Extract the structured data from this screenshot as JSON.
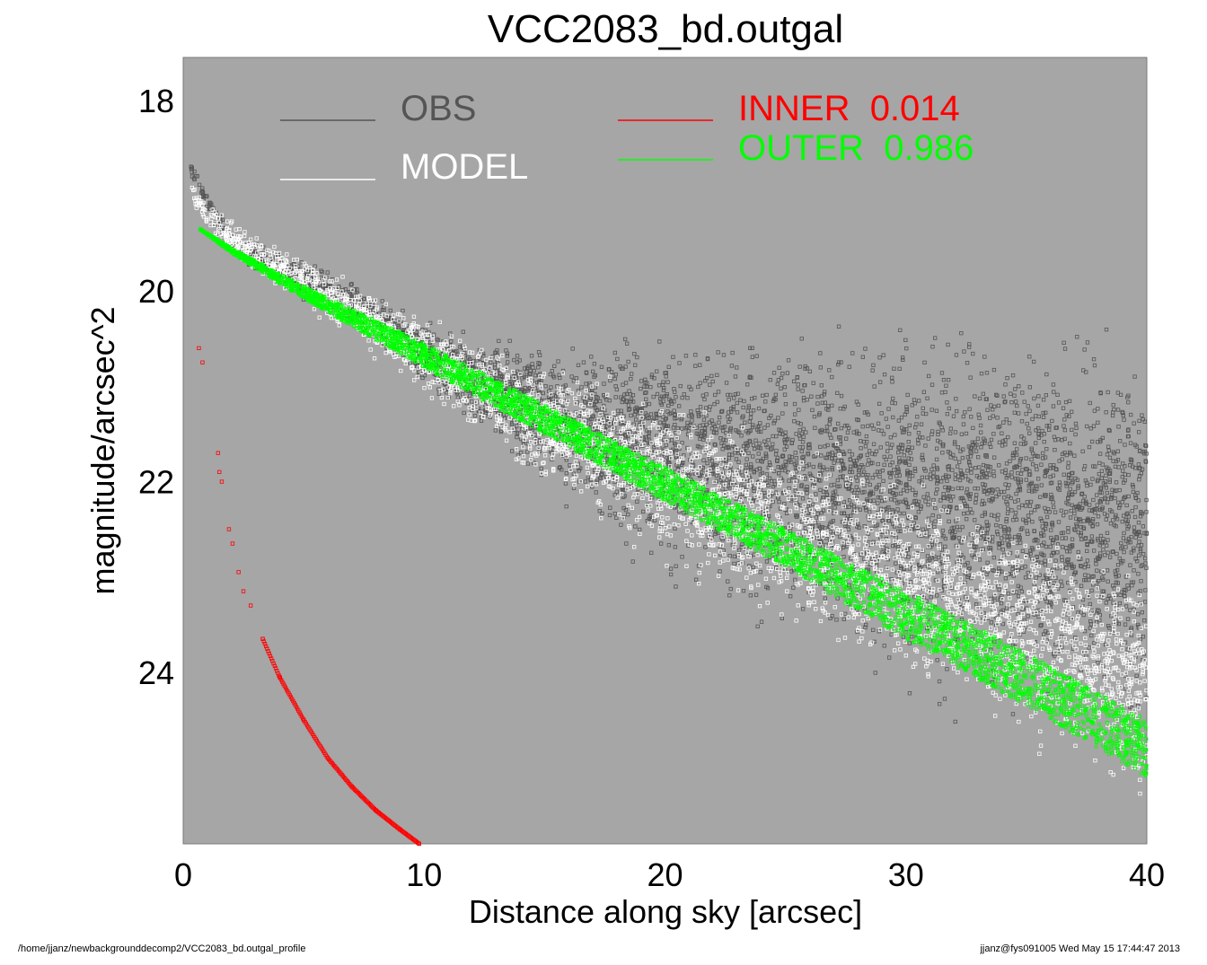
{
  "chart_data": {
    "type": "scatter",
    "title": "VCC2083_bd.outgal",
    "xlabel": "Distance along sky [arcsec]",
    "ylabel": "magnitude/arcsec^2",
    "xlim": [
      0,
      40
    ],
    "ylim": [
      25.8,
      17.55
    ],
    "y_inverted": true,
    "x_ticks": [
      0,
      10,
      20,
      30,
      40
    ],
    "y_ticks": [
      18,
      20,
      22,
      24
    ],
    "plot_background": "#a6a6a6",
    "legend": [
      {
        "name": "OBS",
        "color": "#555555"
      },
      {
        "name": "MODEL",
        "color": "#ffffff"
      },
      {
        "name": "INNER",
        "value": "0.014",
        "color": "#ff0000"
      },
      {
        "name": "OUTER",
        "value": "0.986",
        "color": "#00ff00"
      }
    ],
    "series": [
      {
        "name": "OBS",
        "color": "#555555",
        "profile": {
          "x": [
            0.3,
            1,
            2,
            4,
            6,
            8,
            10,
            15,
            20,
            25,
            30,
            35,
            40
          ],
          "y": [
            18.7,
            19.1,
            19.5,
            19.75,
            20.0,
            20.3,
            20.65,
            21.3,
            21.7,
            22.0,
            22.2,
            22.4,
            22.5
          ]
        },
        "scatter_sigma": {
          "x": [
            0,
            10,
            15,
            20,
            30,
            40
          ],
          "y": [
            0.05,
            0.2,
            0.45,
            0.8,
            1.2,
            1.4
          ]
        }
      },
      {
        "name": "MODEL",
        "color": "#ffffff",
        "profile": {
          "x": [
            0.3,
            1,
            2,
            4,
            6,
            8,
            10,
            15,
            20,
            25,
            30,
            35,
            40
          ],
          "y": [
            18.95,
            19.2,
            19.45,
            19.75,
            20.05,
            20.35,
            20.7,
            21.4,
            22.0,
            22.55,
            23.05,
            23.55,
            24.2
          ]
        },
        "scatter_sigma": {
          "x": [
            0,
            10,
            20,
            40
          ],
          "y": [
            0.08,
            0.3,
            0.6,
            0.9
          ]
        }
      },
      {
        "name": "OUTER",
        "color": "#00ff00",
        "band_upper": {
          "x": [
            0.7,
            2,
            5,
            10,
            15,
            20,
            25,
            30,
            35,
            40
          ],
          "y": [
            19.35,
            19.55,
            19.95,
            20.55,
            21.2,
            21.85,
            22.5,
            23.15,
            23.8,
            24.5
          ]
        },
        "band_lower": {
          "x": [
            0.7,
            2,
            5,
            10,
            15,
            20,
            25,
            30,
            35,
            40
          ],
          "y": [
            19.35,
            19.6,
            20.08,
            20.8,
            21.5,
            22.2,
            22.9,
            23.65,
            24.35,
            25.1
          ]
        }
      },
      {
        "name": "INNER",
        "color": "#ff0000",
        "points": {
          "x": [
            0.65,
            0.8,
            1.45,
            1.5,
            1.6,
            1.9,
            2.05,
            2.3,
            2.5,
            2.8,
            3.3,
            4,
            5,
            6,
            7,
            8,
            9,
            9.8
          ],
          "y": [
            20.6,
            20.75,
            21.7,
            21.9,
            22.0,
            22.5,
            22.65,
            22.95,
            23.15,
            23.3,
            23.65,
            24.05,
            24.5,
            24.9,
            25.2,
            25.45,
            25.65,
            25.8
          ]
        }
      }
    ]
  },
  "footer": {
    "path": "/home/jjanz/newbackgrounddecomp2/VCC2083_bd.outgal_profile",
    "user_timestamp": "jjanz@fys091005  Wed May 15 17:44:47 2013"
  }
}
